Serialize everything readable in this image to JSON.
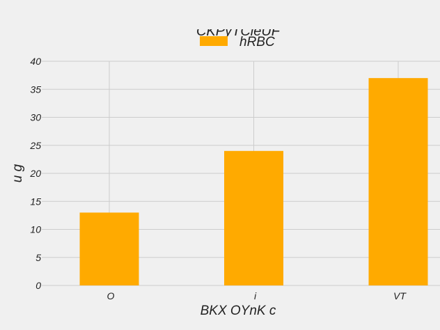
{
  "chart_data": {
    "type": "bar",
    "title": "CKPyTCieUF",
    "xlabel": "BKX OYnK c",
    "ylabel": "u g",
    "categories": [
      "O",
      "i",
      "VT"
    ],
    "series": [
      {
        "name": "hRBC",
        "values": [
          13,
          24,
          37
        ],
        "color": "#ffaa00"
      }
    ],
    "ylim": [
      0,
      40
    ],
    "yticks": [
      0,
      5,
      10,
      15,
      20,
      25,
      30,
      35,
      40
    ],
    "grid": true,
    "legend": "top-center",
    "background": "#f0f0f0",
    "grid_color": "#cccccc"
  }
}
